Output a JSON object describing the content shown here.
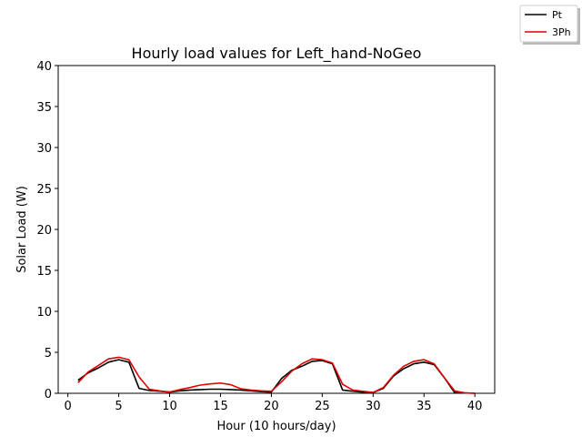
{
  "chart_data": {
    "type": "line",
    "title": "Hourly load values for Left_hand-NoGeo",
    "xlabel": "Hour (10 hours/day)",
    "ylabel": "Solar Load (W)",
    "xlim": [
      -0.95,
      41.95
    ],
    "ylim": [
      0,
      40
    ],
    "xticks": [
      0,
      5,
      10,
      15,
      20,
      25,
      30,
      35,
      40
    ],
    "yticks": [
      0,
      5,
      10,
      15,
      20,
      25,
      30,
      35,
      40
    ],
    "grid": false,
    "legend_position": "top-right",
    "series": [
      {
        "name": "Pt",
        "color": "#000000",
        "x": [
          1,
          2,
          3,
          4,
          5,
          6,
          7,
          8,
          9,
          10,
          11,
          12,
          13,
          14,
          15,
          16,
          17,
          18,
          19,
          20,
          21,
          22,
          23,
          24,
          25,
          26,
          27,
          28,
          29,
          30,
          31,
          32,
          33,
          34,
          35,
          36,
          37,
          38,
          39,
          40
        ],
        "y": [
          1.6,
          2.5,
          3.1,
          3.8,
          4.1,
          3.8,
          0.6,
          0.35,
          0.25,
          0.15,
          0.3,
          0.4,
          0.45,
          0.5,
          0.5,
          0.45,
          0.4,
          0.3,
          0.2,
          0.15,
          1.8,
          2.8,
          3.3,
          3.9,
          4.0,
          3.6,
          0.4,
          0.25,
          0.15,
          0.1,
          0.6,
          2.1,
          3.0,
          3.6,
          3.8,
          3.5,
          1.9,
          0.1,
          0.05,
          0.0
        ]
      },
      {
        "name": "3Ph",
        "color": "#dd0000",
        "x": [
          1,
          2,
          3,
          4,
          5,
          6,
          7,
          8,
          9,
          10,
          11,
          12,
          13,
          14,
          15,
          16,
          17,
          18,
          19,
          20,
          21,
          22,
          23,
          24,
          25,
          26,
          27,
          28,
          29,
          30,
          31,
          32,
          33,
          34,
          35,
          36,
          37,
          38,
          39,
          40
        ],
        "y": [
          1.3,
          2.6,
          3.4,
          4.2,
          4.4,
          4.1,
          2.0,
          0.5,
          0.3,
          0.15,
          0.45,
          0.7,
          1.0,
          1.15,
          1.25,
          1.05,
          0.55,
          0.4,
          0.3,
          0.25,
          1.4,
          2.7,
          3.6,
          4.2,
          4.1,
          3.7,
          1.1,
          0.4,
          0.25,
          0.1,
          0.7,
          2.2,
          3.3,
          3.9,
          4.1,
          3.6,
          1.9,
          0.3,
          0.05,
          0.0
        ]
      }
    ]
  }
}
